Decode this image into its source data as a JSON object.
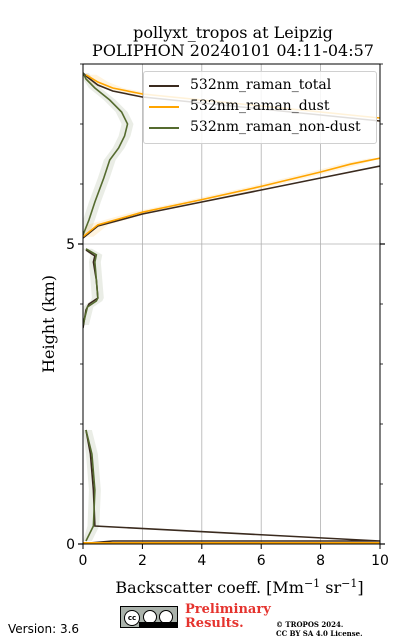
{
  "title_line1": "pollyxt_tropos at Leipzig",
  "title_line2": "POLIPHON 20240101 04:11-04:57",
  "version": "Version: 3.6",
  "badge": {
    "cc": "cc",
    "icons": [
      "cc-icon",
      "by-icon",
      "sa-icon"
    ]
  },
  "preliminary": [
    "Preliminary",
    "Results."
  ],
  "copyright": [
    "© TROPOS 2024.",
    "CC BY SA 4.0 License."
  ],
  "chart_data": {
    "type": "line",
    "xlabel": "Backscatter coeff. [Mm$^{-1}$ sr$^{-1}$]",
    "ylabel": "Height (km)",
    "xlim": [
      0,
      10
    ],
    "ylim": [
      0,
      8
    ],
    "x_ticks": [
      0,
      2,
      4,
      6,
      8,
      10
    ],
    "y_ticks": [
      0,
      5
    ],
    "grid": true,
    "legend_position": "top-right",
    "series": [
      {
        "name": "532nm_raman_total",
        "color": "#3a2a1e",
        "points": [
          [
            0.1,
            0
          ],
          [
            0.3,
            0.02
          ],
          [
            1.0,
            0.05
          ],
          [
            10,
            0.05
          ],
          [
            0.4,
            0.3
          ],
          [
            0.35,
            0.9
          ],
          [
            0.25,
            1.5
          ],
          [
            0.1,
            1.9
          ],
          null,
          [
            0.0,
            3.6
          ],
          [
            0.1,
            3.9
          ],
          [
            0.2,
            4.0
          ],
          [
            0.5,
            4.1
          ],
          [
            0.45,
            4.4
          ],
          [
            0.35,
            4.7
          ],
          [
            0.4,
            4.8
          ],
          [
            0.1,
            4.9
          ],
          null,
          [
            0.0,
            5.1
          ],
          [
            0.5,
            5.3
          ],
          [
            2.0,
            5.5
          ],
          [
            4.0,
            5.7
          ],
          [
            6.0,
            5.9
          ],
          [
            8.0,
            6.1
          ],
          [
            10.0,
            6.3
          ],
          null,
          [
            10.0,
            7.05
          ],
          [
            8.0,
            7.15
          ],
          [
            6.0,
            7.25
          ],
          [
            4.0,
            7.35
          ],
          [
            2.0,
            7.45
          ],
          [
            1.0,
            7.55
          ],
          [
            0.5,
            7.65
          ],
          [
            0.1,
            7.8
          ],
          [
            0.0,
            7.85
          ]
        ]
      },
      {
        "name": "532nm_raman_dust",
        "color": "#ffa500",
        "points": [
          [
            0.0,
            0.02
          ],
          [
            10,
            0.02
          ],
          null,
          [
            0.0,
            5.12
          ],
          [
            0.5,
            5.32
          ],
          [
            2.0,
            5.53
          ],
          [
            4.0,
            5.74
          ],
          [
            6.0,
            5.96
          ],
          [
            8.0,
            6.2
          ],
          [
            9.0,
            6.33
          ],
          [
            10.0,
            6.43
          ],
          null,
          [
            10.0,
            7.1
          ],
          [
            8.0,
            7.2
          ],
          [
            6.0,
            7.3
          ],
          [
            4.0,
            7.4
          ],
          [
            2.0,
            7.5
          ],
          [
            1.0,
            7.6
          ],
          [
            0.5,
            7.7
          ],
          [
            0.1,
            7.82
          ]
        ]
      },
      {
        "name": "532nm_raman_non-dust",
        "color": "#556b2f",
        "points": [
          [
            0.1,
            0.05
          ],
          [
            0.35,
            0.3
          ],
          [
            0.4,
            0.9
          ],
          [
            0.3,
            1.5
          ],
          [
            0.1,
            1.9
          ],
          null,
          [
            0.0,
            3.65
          ],
          [
            0.15,
            3.95
          ],
          [
            0.45,
            4.05
          ],
          [
            0.5,
            4.1
          ],
          [
            0.45,
            4.4
          ],
          [
            0.4,
            4.7
          ],
          [
            0.45,
            4.82
          ],
          [
            0.1,
            4.92
          ],
          null,
          [
            0.0,
            5.15
          ],
          [
            0.2,
            5.4
          ],
          [
            0.4,
            5.7
          ],
          [
            0.7,
            6.1
          ],
          [
            0.9,
            6.4
          ],
          [
            1.2,
            6.6
          ],
          [
            1.4,
            6.8
          ],
          [
            1.5,
            7.0
          ],
          [
            1.3,
            7.2
          ],
          [
            0.9,
            7.4
          ],
          [
            0.4,
            7.6
          ],
          [
            0.1,
            7.75
          ],
          [
            0.0,
            7.85
          ]
        ]
      }
    ]
  }
}
